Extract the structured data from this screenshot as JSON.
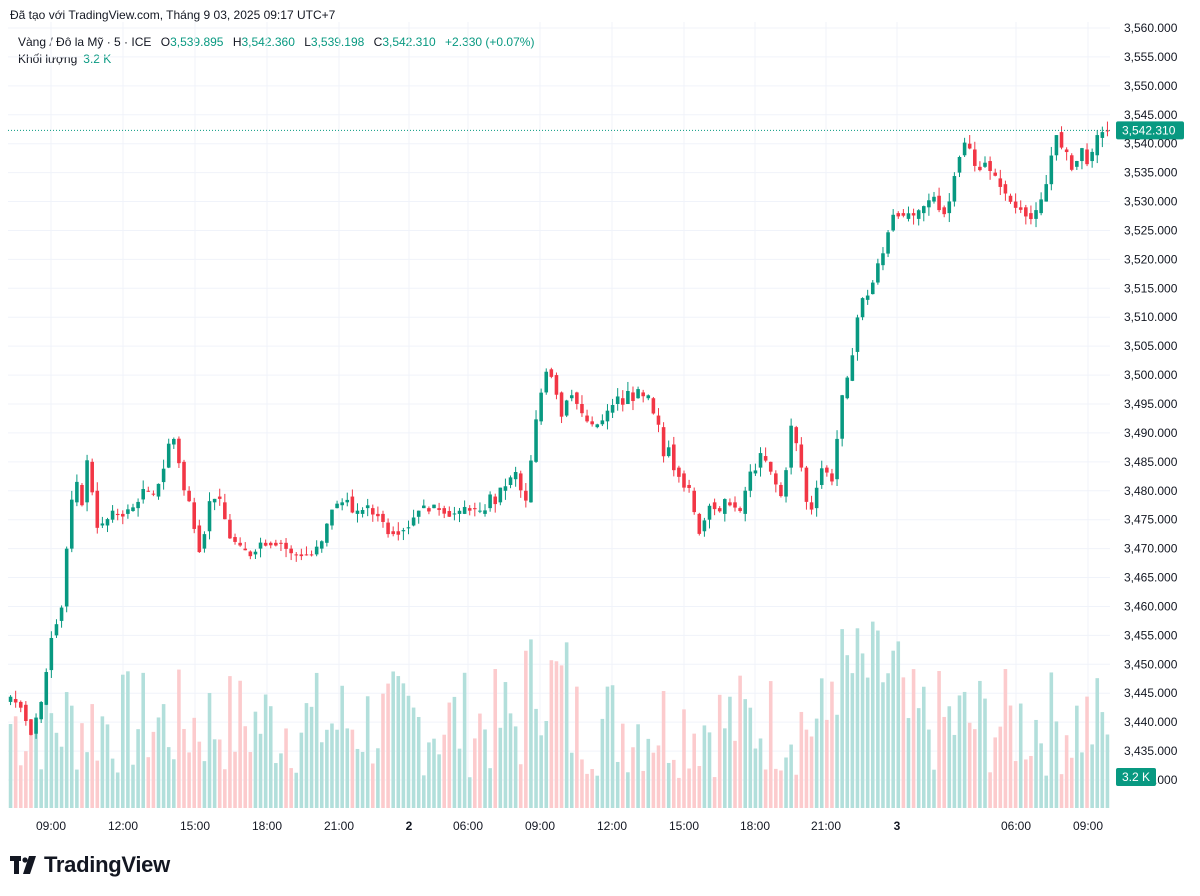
{
  "header": {
    "source": "Đã tạo với TradingView.com, Tháng 9 03, 2025 09:17 UTC+7"
  },
  "legend": {
    "symbol": "Vàng / Đô la Mỹ · 5 · ICE",
    "open_label": "O",
    "open": "3,539.895",
    "high_label": "H",
    "high": "3,542.360",
    "low_label": "L",
    "low": "3,539.198",
    "close_label": "C",
    "close": "3,542.310",
    "change": "+2.330 (+0.07%)",
    "volume_label": "Khối lượng",
    "volume": "3.2 K"
  },
  "branding": {
    "name": "TradingView"
  },
  "colors": {
    "up": "#089981",
    "down": "#f23645",
    "vol_up": "#b2dfdb",
    "vol_down": "#fccbcd",
    "grid": "#f0f3fa",
    "last_price": "#089981"
  },
  "chart_data": {
    "type": "candlestick",
    "symbol": "XAUUSD",
    "interval": "5",
    "ylim": [
      3427.5,
      3560
    ],
    "y_ticks": [
      3560,
      3555,
      3550,
      3545,
      3540,
      3535,
      3530,
      3525,
      3520,
      3515,
      3510,
      3505,
      3500,
      3495,
      3490,
      3485,
      3480,
      3475,
      3470,
      3465,
      3460,
      3455,
      3450,
      3445,
      3440,
      3435,
      3430
    ],
    "y_tick_labels": [
      "3,560.000",
      "3,555.000",
      "3,550.000",
      "3,545.000",
      "3,540.000",
      "3,535.000",
      "3,530.000",
      "3,525.000",
      "3,520.000",
      "3,515.000",
      "3,510.000",
      "3,505.000",
      "3,500.000",
      "3,495.000",
      "3,490.000",
      "3,485.000",
      "3,480.000",
      "3,475.000",
      "3,470.000",
      "3,465.000",
      "3,460.000",
      "3,455.000",
      "3,450.000",
      "3,445.000",
      "3,440.000",
      "3,435.000",
      "3,430.000"
    ],
    "x_ticks": [
      {
        "label": "09:00",
        "bold": false
      },
      {
        "label": "12:00",
        "bold": false
      },
      {
        "label": "15:00",
        "bold": false
      },
      {
        "label": "18:00",
        "bold": false
      },
      {
        "label": "21:00",
        "bold": false
      },
      {
        "label": "2",
        "bold": true
      },
      {
        "label": "06:00",
        "bold": false
      },
      {
        "label": "09:00",
        "bold": false
      },
      {
        "label": "12:00",
        "bold": false
      },
      {
        "label": "15:00",
        "bold": false
      },
      {
        "label": "18:00",
        "bold": false
      },
      {
        "label": "21:00",
        "bold": false
      },
      {
        "label": "3",
        "bold": true
      },
      {
        "label": "06:00",
        "bold": false
      },
      {
        "label": "09:00",
        "bold": false
      }
    ],
    "last_price": 3542.31,
    "last_price_label": "3,542.310",
    "volume_label": "3.2 K",
    "path": [
      [
        0,
        3444
      ],
      [
        2,
        3443
      ],
      [
        4,
        3438
      ],
      [
        6,
        3443
      ],
      [
        8,
        3455
      ],
      [
        10,
        3460
      ],
      [
        11,
        3470
      ],
      [
        12,
        3478
      ],
      [
        13,
        3481
      ],
      [
        14,
        3478
      ],
      [
        15,
        3485
      ],
      [
        16,
        3480
      ],
      [
        17,
        3474
      ],
      [
        18,
        3474
      ],
      [
        20,
        3476
      ],
      [
        22,
        3476
      ],
      [
        24,
        3477
      ],
      [
        26,
        3480
      ],
      [
        28,
        3479
      ],
      [
        30,
        3484
      ],
      [
        31,
        3488
      ],
      [
        32,
        3489
      ],
      [
        33,
        3485
      ],
      [
        34,
        3480
      ],
      [
        35,
        3478
      ],
      [
        36,
        3474
      ],
      [
        37,
        3470
      ],
      [
        38,
        3473
      ],
      [
        39,
        3478
      ],
      [
        40,
        3479
      ],
      [
        41,
        3478
      ],
      [
        42,
        3475
      ],
      [
        43,
        3472
      ],
      [
        45,
        3470
      ],
      [
        47,
        3469
      ],
      [
        49,
        3471
      ],
      [
        51,
        3471
      ],
      [
        53,
        3471
      ],
      [
        55,
        3469
      ],
      [
        57,
        3469
      ],
      [
        59,
        3469
      ],
      [
        61,
        3471
      ],
      [
        63,
        3477
      ],
      [
        65,
        3478
      ],
      [
        66,
        3479
      ],
      [
        67,
        3476
      ],
      [
        68,
        3476
      ],
      [
        69,
        3477
      ],
      [
        70,
        3477
      ],
      [
        71,
        3476
      ],
      [
        72,
        3476
      ],
      [
        74,
        3473
      ],
      [
        76,
        3473
      ],
      [
        78,
        3474
      ],
      [
        80,
        3477
      ],
      [
        82,
        3477
      ],
      [
        84,
        3477
      ],
      [
        86,
        3476
      ],
      [
        88,
        3476
      ],
      [
        89,
        3477
      ],
      [
        90,
        3477
      ],
      [
        92,
        3476
      ],
      [
        93,
        3477
      ],
      [
        94,
        3479
      ],
      [
        95,
        3478
      ],
      [
        96,
        3480
      ],
      [
        97,
        3481
      ],
      [
        99,
        3483
      ],
      [
        100,
        3480
      ],
      [
        101,
        3478
      ],
      [
        102,
        3485
      ],
      [
        103,
        3492
      ],
      [
        104,
        3497
      ],
      [
        105,
        3501
      ],
      [
        106,
        3500
      ],
      [
        107,
        3497
      ],
      [
        108,
        3493
      ],
      [
        109,
        3496
      ],
      [
        110,
        3497
      ],
      [
        111,
        3495
      ],
      [
        112,
        3493
      ],
      [
        113,
        3492
      ],
      [
        114,
        3491
      ],
      [
        116,
        3492
      ],
      [
        118,
        3495
      ],
      [
        119,
        3496
      ],
      [
        120,
        3495
      ],
      [
        121,
        3497
      ],
      [
        122,
        3496
      ],
      [
        123,
        3497
      ],
      [
        124,
        3496
      ],
      [
        125,
        3496
      ],
      [
        126,
        3493
      ],
      [
        127,
        3491
      ],
      [
        128,
        3486
      ],
      [
        129,
        3488
      ],
      [
        130,
        3484
      ],
      [
        131,
        3483
      ],
      [
        132,
        3481
      ],
      [
        133,
        3480
      ],
      [
        134,
        3476
      ],
      [
        135,
        3473
      ],
      [
        136,
        3475
      ],
      [
        137,
        3478
      ],
      [
        138,
        3477
      ],
      [
        139,
        3476
      ],
      [
        140,
        3478
      ],
      [
        141,
        3478
      ],
      [
        142,
        3477
      ],
      [
        143,
        3476
      ],
      [
        144,
        3480
      ],
      [
        145,
        3483
      ],
      [
        146,
        3484
      ],
      [
        147,
        3486
      ],
      [
        148,
        3485
      ],
      [
        149,
        3483
      ],
      [
        150,
        3481
      ],
      [
        151,
        3479
      ],
      [
        152,
        3484
      ],
      [
        153,
        3491
      ],
      [
        154,
        3488
      ],
      [
        155,
        3484
      ],
      [
        156,
        3478
      ],
      [
        157,
        3477
      ],
      [
        158,
        3481
      ],
      [
        159,
        3484
      ],
      [
        160,
        3483
      ],
      [
        161,
        3482
      ],
      [
        162,
        3489
      ],
      [
        163,
        3496
      ],
      [
        164,
        3499
      ],
      [
        165,
        3504
      ],
      [
        166,
        3510
      ],
      [
        167,
        3513
      ],
      [
        168,
        3514
      ],
      [
        169,
        3516
      ],
      [
        170,
        3519
      ],
      [
        171,
        3521
      ],
      [
        172,
        3525
      ],
      [
        173,
        3528
      ],
      [
        174,
        3528
      ],
      [
        175,
        3527
      ],
      [
        176,
        3528
      ],
      [
        177,
        3527
      ],
      [
        178,
        3528
      ],
      [
        179,
        3529
      ],
      [
        180,
        3530
      ],
      [
        181,
        3531
      ],
      [
        182,
        3529
      ],
      [
        183,
        3528
      ],
      [
        184,
        3530
      ],
      [
        185,
        3535
      ],
      [
        186,
        3538
      ],
      [
        187,
        3540
      ],
      [
        188,
        3539
      ],
      [
        189,
        3536
      ],
      [
        190,
        3536
      ],
      [
        191,
        3537
      ],
      [
        192,
        3535
      ],
      [
        193,
        3534
      ],
      [
        194,
        3533
      ],
      [
        195,
        3531
      ],
      [
        196,
        3530
      ],
      [
        197,
        3529
      ],
      [
        198,
        3529
      ],
      [
        199,
        3528
      ],
      [
        200,
        3527
      ],
      [
        201,
        3528
      ],
      [
        202,
        3530
      ],
      [
        203,
        3533
      ],
      [
        204,
        3538
      ],
      [
        205,
        3542
      ],
      [
        206,
        3539
      ],
      [
        207,
        3538
      ],
      [
        208,
        3536
      ],
      [
        209,
        3537
      ],
      [
        210,
        3539
      ],
      [
        211,
        3537
      ],
      [
        212,
        3538
      ],
      [
        213,
        3541
      ],
      [
        214,
        3542.3
      ]
    ]
  }
}
